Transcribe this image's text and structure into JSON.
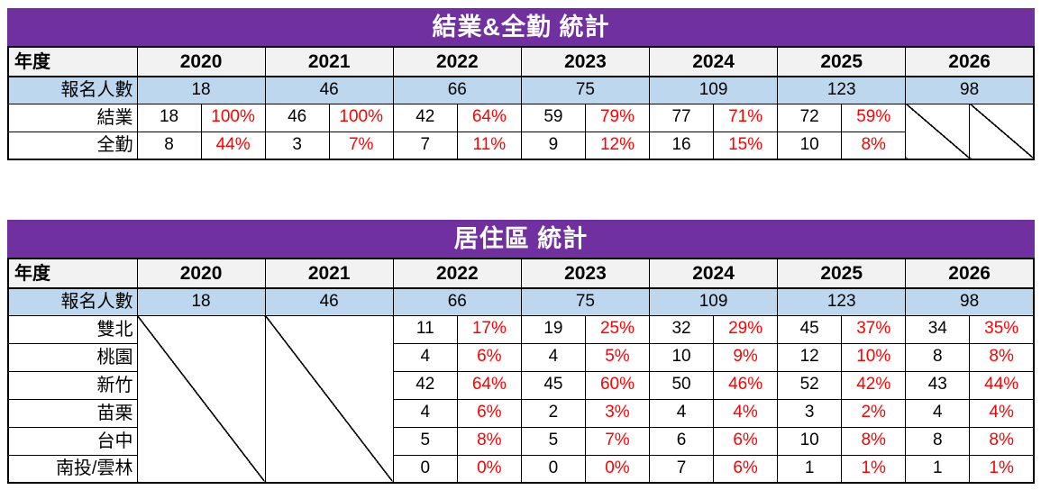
{
  "colors": {
    "title_bar": "#7030A0",
    "title_text": "#ffffff",
    "enrollment_row": "#BDD7EE",
    "header_row": "#F2F2F2",
    "percent_text": "#FF0000",
    "border": "#000000"
  },
  "years": [
    "2020",
    "2021",
    "2022",
    "2023",
    "2024",
    "2025",
    "2026"
  ],
  "table1": {
    "title": "結業&全勤 統計",
    "year_label": "年度",
    "enrollment_label": "報名人數",
    "enrollment": [
      "18",
      "46",
      "66",
      "75",
      "109",
      "123",
      "98"
    ],
    "rows": [
      {
        "label": "結業",
        "values": [
          [
            "18",
            "100%"
          ],
          [
            "46",
            "100%"
          ],
          [
            "42",
            "64%"
          ],
          [
            "59",
            "79%"
          ],
          [
            "77",
            "71%"
          ],
          [
            "72",
            "59%"
          ]
        ]
      },
      {
        "label": "全勤",
        "values": [
          [
            "8",
            "44%"
          ],
          [
            "3",
            "7%"
          ],
          [
            "7",
            "11%"
          ],
          [
            "9",
            "12%"
          ],
          [
            "16",
            "15%"
          ],
          [
            "10",
            "8%"
          ]
        ]
      }
    ]
  },
  "table2": {
    "title": "居住區 統計",
    "year_label": "年度",
    "enrollment_label": "報名人數",
    "enrollment": [
      "18",
      "46",
      "66",
      "75",
      "109",
      "123",
      "98"
    ],
    "rows": [
      {
        "label": "雙北",
        "values": [
          [
            "11",
            "17%"
          ],
          [
            "19",
            "25%"
          ],
          [
            "32",
            "29%"
          ],
          [
            "45",
            "37%"
          ],
          [
            "34",
            "35%"
          ]
        ]
      },
      {
        "label": "桃園",
        "values": [
          [
            "4",
            "6%"
          ],
          [
            "4",
            "5%"
          ],
          [
            "10",
            "9%"
          ],
          [
            "12",
            "10%"
          ],
          [
            "8",
            "8%"
          ]
        ]
      },
      {
        "label": "新竹",
        "values": [
          [
            "42",
            "64%"
          ],
          [
            "45",
            "60%"
          ],
          [
            "50",
            "46%"
          ],
          [
            "52",
            "42%"
          ],
          [
            "43",
            "44%"
          ]
        ]
      },
      {
        "label": "苗栗",
        "values": [
          [
            "4",
            "6%"
          ],
          [
            "2",
            "3%"
          ],
          [
            "4",
            "4%"
          ],
          [
            "3",
            "2%"
          ],
          [
            "4",
            "4%"
          ]
        ]
      },
      {
        "label": "台中",
        "values": [
          [
            "5",
            "8%"
          ],
          [
            "5",
            "7%"
          ],
          [
            "6",
            "6%"
          ],
          [
            "10",
            "8%"
          ],
          [
            "8",
            "8%"
          ]
        ]
      },
      {
        "label": "南投/雲林",
        "values": [
          [
            "0",
            "0%"
          ],
          [
            "0",
            "0%"
          ],
          [
            "7",
            "6%"
          ],
          [
            "1",
            "1%"
          ],
          [
            "1",
            "1%"
          ]
        ]
      }
    ]
  }
}
